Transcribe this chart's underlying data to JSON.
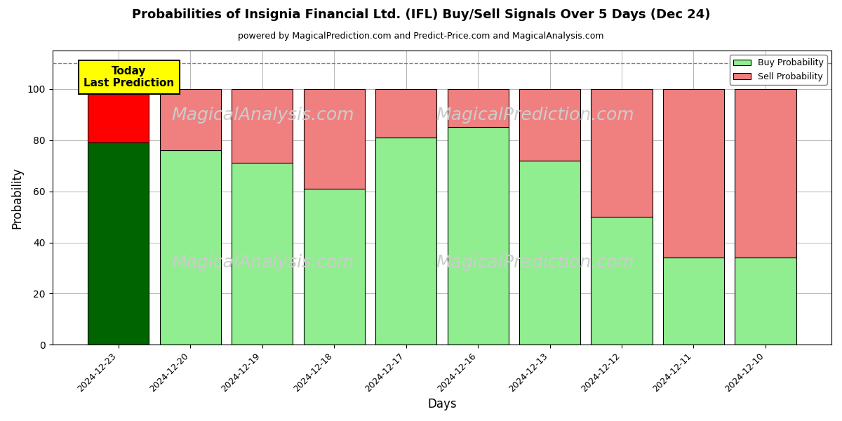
{
  "title": "Probabilities of Insignia Financial Ltd. (IFL) Buy/Sell Signals Over 5 Days (Dec 24)",
  "subtitle": "powered by MagicalPrediction.com and Predict-Price.com and MagicalAnalysis.com",
  "xlabel": "Days",
  "ylabel": "Probability",
  "dates": [
    "2024-12-23",
    "2024-12-20",
    "2024-12-19",
    "2024-12-18",
    "2024-12-17",
    "2024-12-16",
    "2024-12-13",
    "2024-12-12",
    "2024-12-11",
    "2024-12-10"
  ],
  "buy_values": [
    79,
    76,
    71,
    61,
    81,
    85,
    72,
    50,
    34,
    34
  ],
  "sell_values": [
    21,
    24,
    29,
    39,
    19,
    15,
    28,
    50,
    66,
    66
  ],
  "first_bar_buy_color": "#006400",
  "first_bar_sell_color": "#FF0000",
  "other_buy_color": "#90EE90",
  "other_sell_color": "#F08080",
  "bar_edge_color": "#000000",
  "today_box_facecolor": "#FFFF00",
  "today_box_edgecolor": "#000000",
  "today_label_line1": "Today",
  "today_label_line2": "Last Prediction",
  "dashed_line_y": 110,
  "ylim": [
    0,
    115
  ],
  "yticks": [
    0,
    20,
    40,
    60,
    80,
    100
  ],
  "legend_buy_color": "#90EE90",
  "legend_sell_color": "#F08080",
  "legend_buy_label": "Buy Probability",
  "legend_sell_label": "Sell Probability",
  "watermark_color": "#cccccc",
  "bg_color": "#ffffff",
  "grid_color": "#aaaaaa"
}
